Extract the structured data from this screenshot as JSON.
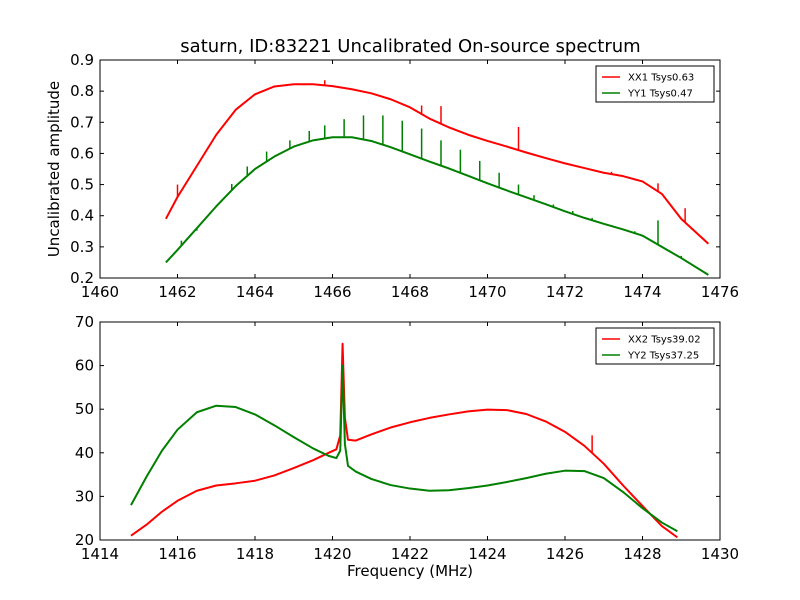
{
  "figure": {
    "title": "saturn, ID:83221 Uncalibrated On-source spectrum",
    "xlabel": "Frequency (MHz)",
    "ylabel": "Uncalibrated amplitude"
  },
  "colors": {
    "red": "#ff0000",
    "green": "#008000"
  },
  "chart_data": [
    {
      "type": "line",
      "xlim": [
        1460,
        1476
      ],
      "ylim": [
        0.2,
        0.9
      ],
      "xticks": [
        "1460",
        "1462",
        "1464",
        "1466",
        "1468",
        "1470",
        "1472",
        "1474",
        "1476"
      ],
      "yticks": [
        "0.2",
        "0.3",
        "0.4",
        "0.5",
        "0.6",
        "0.7",
        "0.8",
        "0.9"
      ],
      "legend_position": "top-right",
      "series": [
        {
          "name": "XX1 Tsys0.63",
          "color": "#ff0000",
          "x": [
            1461.7,
            1462.0,
            1462.5,
            1463.0,
            1463.5,
            1464.0,
            1464.5,
            1465.0,
            1465.5,
            1466.0,
            1466.5,
            1467.0,
            1467.5,
            1468.0,
            1468.5,
            1469.0,
            1469.5,
            1470.0,
            1470.5,
            1471.0,
            1471.5,
            1472.0,
            1472.5,
            1473.0,
            1473.5,
            1474.0,
            1474.5,
            1475.0,
            1475.7
          ],
          "y": [
            0.39,
            0.46,
            0.56,
            0.66,
            0.74,
            0.79,
            0.815,
            0.822,
            0.822,
            0.816,
            0.806,
            0.793,
            0.774,
            0.748,
            0.712,
            0.684,
            0.66,
            0.64,
            0.622,
            0.603,
            0.585,
            0.568,
            0.553,
            0.538,
            0.527,
            0.51,
            0.47,
            0.39,
            0.31
          ],
          "spikes": [
            [
              1462.0,
              0.5
            ],
            [
              1465.8,
              0.835
            ],
            [
              1468.3,
              0.754
            ],
            [
              1468.8,
              0.752
            ],
            [
              1470.8,
              0.685
            ],
            [
              1473.2,
              0.541
            ],
            [
              1474.4,
              0.504
            ],
            [
              1475.1,
              0.424
            ]
          ]
        },
        {
          "name": "YY1 Tsys0.47",
          "color": "#008000",
          "x": [
            1461.7,
            1462.0,
            1462.5,
            1463.0,
            1463.5,
            1464.0,
            1464.5,
            1465.0,
            1465.5,
            1466.0,
            1466.5,
            1467.0,
            1467.5,
            1468.0,
            1468.5,
            1469.0,
            1469.5,
            1470.0,
            1470.5,
            1471.0,
            1471.5,
            1472.0,
            1472.5,
            1473.0,
            1473.5,
            1474.0,
            1474.5,
            1475.0,
            1475.7
          ],
          "y": [
            0.25,
            0.29,
            0.36,
            0.43,
            0.495,
            0.55,
            0.59,
            0.622,
            0.642,
            0.652,
            0.652,
            0.64,
            0.62,
            0.597,
            0.574,
            0.552,
            0.528,
            0.504,
            0.481,
            0.459,
            0.437,
            0.414,
            0.393,
            0.374,
            0.356,
            0.336,
            0.3,
            0.264,
            0.21
          ],
          "spikes": [
            [
              1462.1,
              0.32
            ],
            [
              1462.5,
              0.352
            ],
            [
              1463.0,
              0.432
            ],
            [
              1463.4,
              0.502
            ],
            [
              1463.8,
              0.558
            ],
            [
              1464.3,
              0.606
            ],
            [
              1464.9,
              0.642
            ],
            [
              1465.4,
              0.672
            ],
            [
              1465.8,
              0.69
            ],
            [
              1466.3,
              0.71
            ],
            [
              1466.8,
              0.722
            ],
            [
              1467.3,
              0.722
            ],
            [
              1467.8,
              0.705
            ],
            [
              1468.3,
              0.68
            ],
            [
              1468.8,
              0.642
            ],
            [
              1469.3,
              0.612
            ],
            [
              1469.8,
              0.576
            ],
            [
              1470.3,
              0.538
            ],
            [
              1470.8,
              0.5
            ],
            [
              1471.2,
              0.466
            ],
            [
              1471.7,
              0.436
            ],
            [
              1472.2,
              0.415
            ],
            [
              1472.7,
              0.393
            ],
            [
              1473.2,
              0.37
            ],
            [
              1473.8,
              0.35
            ],
            [
              1474.4,
              0.385
            ],
            [
              1475.0,
              0.271
            ]
          ]
        }
      ]
    },
    {
      "type": "line",
      "xlim": [
        1414,
        1430
      ],
      "ylim": [
        20,
        70
      ],
      "xticks": [
        "1414",
        "1416",
        "1418",
        "1420",
        "1422",
        "1424",
        "1426",
        "1428",
        "1430"
      ],
      "yticks": [
        "20",
        "30",
        "40",
        "50",
        "60",
        "70"
      ],
      "legend_position": "top-right",
      "series": [
        {
          "name": "XX2 Tsys39.02",
          "color": "#ff0000",
          "x": [
            1414.8,
            1415.2,
            1415.6,
            1416.0,
            1416.5,
            1417.0,
            1417.5,
            1418.0,
            1418.5,
            1419.0,
            1419.5,
            1419.9,
            1420.1,
            1420.2,
            1420.26,
            1420.32,
            1420.4,
            1420.6,
            1421.0,
            1421.5,
            1422.0,
            1422.5,
            1423.0,
            1423.5,
            1424.0,
            1424.5,
            1425.0,
            1425.5,
            1426.0,
            1426.5,
            1427.0,
            1427.5,
            1428.0,
            1428.5,
            1428.9
          ],
          "y": [
            21,
            23.5,
            26.5,
            29,
            31.3,
            32.5,
            33,
            33.6,
            34.8,
            36.5,
            38.3,
            40,
            40.8,
            44,
            65,
            48,
            43,
            42.8,
            44.2,
            45.8,
            47,
            48,
            48.8,
            49.5,
            49.9,
            49.8,
            48.9,
            47.2,
            44.8,
            41.6,
            37.5,
            32.5,
            27.8,
            23.2,
            20.6
          ],
          "spikes": [
            [
              1426.7,
              44
            ]
          ]
        },
        {
          "name": "YY2 Tsys37.25",
          "color": "#008000",
          "x": [
            1414.8,
            1415.2,
            1415.6,
            1416.0,
            1416.5,
            1417.0,
            1417.5,
            1418.0,
            1418.5,
            1419.0,
            1419.5,
            1419.9,
            1420.1,
            1420.2,
            1420.26,
            1420.32,
            1420.4,
            1420.6,
            1421.0,
            1421.5,
            1422.0,
            1422.5,
            1423.0,
            1423.5,
            1424.0,
            1424.5,
            1425.0,
            1425.5,
            1426.0,
            1426.5,
            1427.0,
            1427.5,
            1428.0,
            1428.5,
            1428.9
          ],
          "y": [
            28,
            34.5,
            40.5,
            45.3,
            49.3,
            50.8,
            50.5,
            48.8,
            46.3,
            43.6,
            41,
            39.3,
            38.8,
            40.5,
            60,
            42,
            37,
            35.7,
            34,
            32.6,
            31.8,
            31.3,
            31.4,
            31.9,
            32.5,
            33.3,
            34.2,
            35.2,
            35.9,
            35.8,
            34.2,
            31,
            27.3,
            24,
            22
          ],
          "spikes": []
        }
      ]
    }
  ]
}
